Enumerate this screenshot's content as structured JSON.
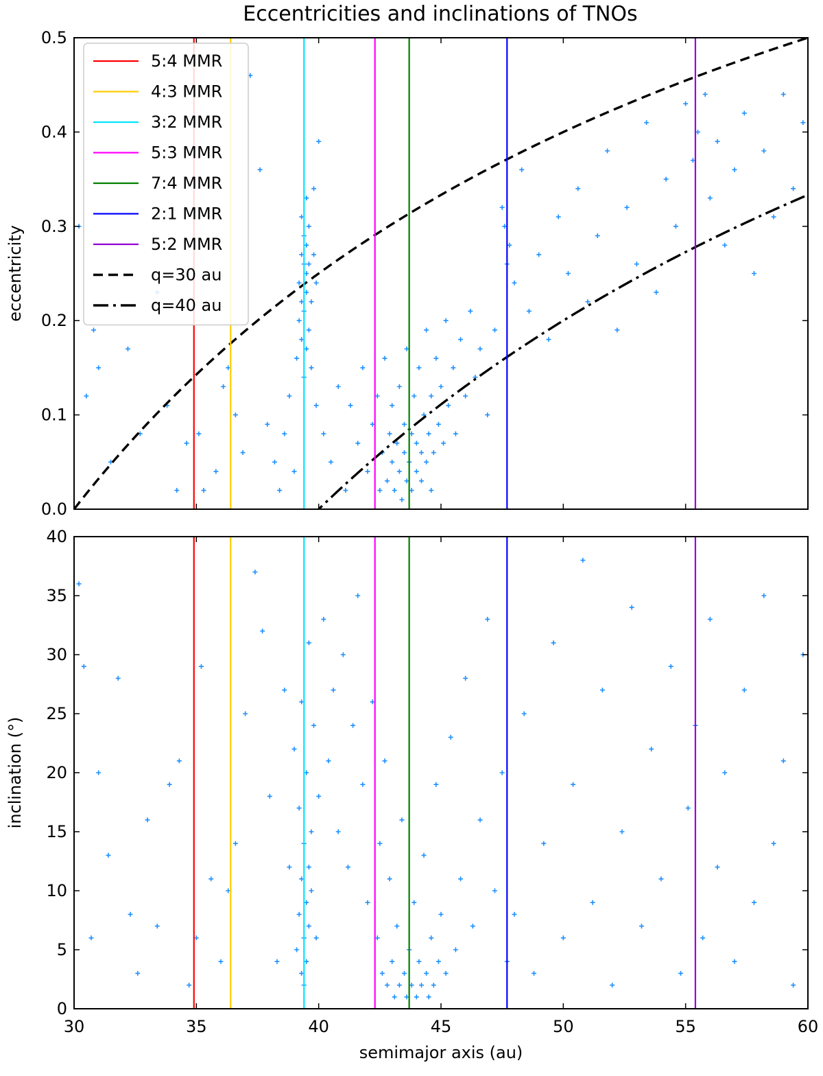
{
  "title": "Eccentricities and inclinations of TNOs",
  "chart_data": [
    {
      "type": "scatter",
      "panel": "top",
      "xlabel": "",
      "ylabel": "eccentricity",
      "xlim": [
        30,
        60
      ],
      "ylim": [
        0.0,
        0.5
      ],
      "xticks": [
        30,
        35,
        40,
        45,
        50,
        55,
        60
      ],
      "yticks": [
        0.0,
        0.1,
        0.2,
        0.3,
        0.4,
        0.5
      ],
      "ytick_labels": [
        "0.0",
        "0.1",
        "0.2",
        "0.3",
        "0.4",
        "0.5"
      ],
      "legend_position": "top-left",
      "reference_lines": [
        {
          "name": "5:4 MMR",
          "x": 34.9,
          "color": "#ff0000"
        },
        {
          "name": "4:3 MMR",
          "x": 36.4,
          "color": "#ffcc00"
        },
        {
          "name": "3:2 MMR",
          "x": 39.4,
          "color": "#00e5ff"
        },
        {
          "name": "5:3 MMR",
          "x": 42.3,
          "color": "#ff00ff"
        },
        {
          "name": "7:4 MMR",
          "x": 43.7,
          "color": "#007f00"
        },
        {
          "name": "2:1 MMR",
          "x": 47.7,
          "color": "#0000ff"
        },
        {
          "name": "5:2 MMR",
          "x": 55.4,
          "color": "#9400d3"
        }
      ],
      "curves": [
        {
          "name": "q=30 au",
          "q": 30,
          "formula": "e = 1 - q/a",
          "style": "dashed",
          "color": "#000000"
        },
        {
          "name": "q=40 au",
          "q": 40,
          "formula": "e = 1 - q/a",
          "style": "dashdot",
          "color": "#000000"
        }
      ],
      "scatter_color": "#1e90ff",
      "points": [
        [
          30.2,
          0.3
        ],
        [
          30.5,
          0.12
        ],
        [
          30.8,
          0.19
        ],
        [
          31.0,
          0.15
        ],
        [
          31.5,
          0.05
        ],
        [
          32.2,
          0.17
        ],
        [
          32.7,
          0.08
        ],
        [
          33.4,
          0.23
        ],
        [
          33.8,
          0.11
        ],
        [
          34.2,
          0.02
        ],
        [
          34.6,
          0.07
        ],
        [
          35.1,
          0.08
        ],
        [
          35.3,
          0.02
        ],
        [
          35.8,
          0.04
        ],
        [
          36.1,
          0.13
        ],
        [
          36.3,
          0.15
        ],
        [
          36.6,
          0.1
        ],
        [
          36.9,
          0.06
        ],
        [
          37.2,
          0.46
        ],
        [
          37.6,
          0.36
        ],
        [
          37.9,
          0.09
        ],
        [
          38.2,
          0.05
        ],
        [
          38.4,
          0.02
        ],
        [
          38.6,
          0.08
        ],
        [
          38.8,
          0.12
        ],
        [
          39.0,
          0.04
        ],
        [
          39.1,
          0.16
        ],
        [
          39.2,
          0.2
        ],
        [
          39.2,
          0.24
        ],
        [
          39.3,
          0.27
        ],
        [
          39.3,
          0.31
        ],
        [
          39.3,
          0.22
        ],
        [
          39.3,
          0.18
        ],
        [
          39.4,
          0.14
        ],
        [
          39.4,
          0.26
        ],
        [
          39.4,
          0.29
        ],
        [
          39.4,
          0.21
        ],
        [
          39.5,
          0.33
        ],
        [
          39.5,
          0.25
        ],
        [
          39.5,
          0.17
        ],
        [
          39.5,
          0.23
        ],
        [
          39.5,
          0.28
        ],
        [
          39.6,
          0.19
        ],
        [
          39.6,
          0.3
        ],
        [
          39.6,
          0.26
        ],
        [
          39.7,
          0.22
        ],
        [
          39.7,
          0.15
        ],
        [
          39.8,
          0.34
        ],
        [
          39.8,
          0.27
        ],
        [
          39.9,
          0.24
        ],
        [
          39.9,
          0.11
        ],
        [
          40.0,
          0.39
        ],
        [
          40.2,
          0.08
        ],
        [
          40.5,
          0.05
        ],
        [
          40.8,
          0.13
        ],
        [
          41.1,
          0.02
        ],
        [
          41.3,
          0.11
        ],
        [
          41.6,
          0.07
        ],
        [
          41.8,
          0.15
        ],
        [
          42.0,
          0.04
        ],
        [
          42.2,
          0.09
        ],
        [
          42.4,
          0.12
        ],
        [
          42.5,
          0.02
        ],
        [
          42.6,
          0.06
        ],
        [
          42.7,
          0.16
        ],
        [
          42.8,
          0.03
        ],
        [
          42.9,
          0.08
        ],
        [
          43.0,
          0.05
        ],
        [
          43.0,
          0.11
        ],
        [
          43.1,
          0.02
        ],
        [
          43.2,
          0.07
        ],
        [
          43.3,
          0.04
        ],
        [
          43.3,
          0.13
        ],
        [
          43.4,
          0.01
        ],
        [
          43.5,
          0.06
        ],
        [
          43.5,
          0.09
        ],
        [
          43.6,
          0.03
        ],
        [
          43.6,
          0.17
        ],
        [
          43.7,
          0.05
        ],
        [
          43.8,
          0.02
        ],
        [
          43.8,
          0.08
        ],
        [
          43.9,
          0.12
        ],
        [
          44.0,
          0.04
        ],
        [
          44.0,
          0.07
        ],
        [
          44.1,
          0.15
        ],
        [
          44.2,
          0.03
        ],
        [
          44.2,
          0.06
        ],
        [
          44.3,
          0.1
        ],
        [
          44.4,
          0.05
        ],
        [
          44.4,
          0.19
        ],
        [
          44.5,
          0.08
        ],
        [
          44.6,
          0.02
        ],
        [
          44.6,
          0.12
        ],
        [
          44.7,
          0.06
        ],
        [
          44.8,
          0.16
        ],
        [
          44.9,
          0.09
        ],
        [
          45.0,
          0.13
        ],
        [
          45.1,
          0.07
        ],
        [
          45.2,
          0.2
        ],
        [
          45.3,
          0.11
        ],
        [
          45.5,
          0.15
        ],
        [
          45.6,
          0.08
        ],
        [
          45.8,
          0.18
        ],
        [
          46.0,
          0.12
        ],
        [
          46.2,
          0.21
        ],
        [
          46.4,
          0.14
        ],
        [
          46.6,
          0.17
        ],
        [
          46.9,
          0.1
        ],
        [
          47.2,
          0.19
        ],
        [
          47.5,
          0.32
        ],
        [
          47.6,
          0.3
        ],
        [
          47.7,
          0.26
        ],
        [
          47.8,
          0.28
        ],
        [
          48.0,
          0.24
        ],
        [
          48.3,
          0.36
        ],
        [
          48.6,
          0.21
        ],
        [
          49.0,
          0.27
        ],
        [
          49.4,
          0.18
        ],
        [
          49.8,
          0.31
        ],
        [
          50.2,
          0.25
        ],
        [
          50.6,
          0.34
        ],
        [
          51.0,
          0.22
        ],
        [
          51.4,
          0.29
        ],
        [
          51.8,
          0.38
        ],
        [
          52.2,
          0.19
        ],
        [
          52.6,
          0.32
        ],
        [
          53.0,
          0.26
        ],
        [
          53.4,
          0.41
        ],
        [
          53.8,
          0.23
        ],
        [
          54.2,
          0.35
        ],
        [
          54.6,
          0.3
        ],
        [
          55.0,
          0.43
        ],
        [
          55.3,
          0.37
        ],
        [
          55.5,
          0.4
        ],
        [
          55.8,
          0.44
        ],
        [
          56.0,
          0.33
        ],
        [
          56.3,
          0.39
        ],
        [
          56.6,
          0.28
        ],
        [
          57.0,
          0.36
        ],
        [
          57.4,
          0.42
        ],
        [
          57.8,
          0.25
        ],
        [
          58.2,
          0.38
        ],
        [
          58.6,
          0.31
        ],
        [
          59.0,
          0.44
        ],
        [
          59.4,
          0.34
        ],
        [
          59.8,
          0.41
        ]
      ]
    },
    {
      "type": "scatter",
      "panel": "bottom",
      "xlabel": "semimajor axis (au)",
      "ylabel": "inclination (°)",
      "xlim": [
        30,
        60
      ],
      "ylim": [
        0,
        40
      ],
      "xticks": [
        30,
        35,
        40,
        45,
        50,
        55,
        60
      ],
      "yticks": [
        0,
        5,
        10,
        15,
        20,
        25,
        30,
        35,
        40
      ],
      "ytick_labels": [
        "0",
        "5",
        "10",
        "15",
        "20",
        "25",
        "30",
        "35",
        "40"
      ],
      "reference_lines": [
        {
          "name": "5:4 MMR",
          "x": 34.9,
          "color": "#ff0000"
        },
        {
          "name": "4:3 MMR",
          "x": 36.4,
          "color": "#ffcc00"
        },
        {
          "name": "3:2 MMR",
          "x": 39.4,
          "color": "#00e5ff"
        },
        {
          "name": "5:3 MMR",
          "x": 42.3,
          "color": "#ff00ff"
        },
        {
          "name": "7:4 MMR",
          "x": 43.7,
          "color": "#007f00"
        },
        {
          "name": "2:1 MMR",
          "x": 47.7,
          "color": "#0000ff"
        },
        {
          "name": "5:2 MMR",
          "x": 55.4,
          "color": "#9400d3"
        }
      ],
      "scatter_color": "#1e90ff",
      "points": [
        [
          30.2,
          36
        ],
        [
          30.4,
          29
        ],
        [
          30.7,
          6
        ],
        [
          31.0,
          20
        ],
        [
          31.4,
          13
        ],
        [
          31.8,
          28
        ],
        [
          32.3,
          8
        ],
        [
          32.6,
          3
        ],
        [
          33.0,
          16
        ],
        [
          33.4,
          7
        ],
        [
          33.9,
          19
        ],
        [
          34.3,
          21
        ],
        [
          34.7,
          2
        ],
        [
          35.0,
          6
        ],
        [
          35.2,
          29
        ],
        [
          35.6,
          11
        ],
        [
          36.0,
          4
        ],
        [
          36.3,
          10
        ],
        [
          36.6,
          14
        ],
        [
          37.0,
          25
        ],
        [
          37.4,
          37
        ],
        [
          37.7,
          32
        ],
        [
          38.0,
          18
        ],
        [
          38.3,
          4
        ],
        [
          38.6,
          27
        ],
        [
          38.8,
          12
        ],
        [
          39.0,
          22
        ],
        [
          39.1,
          5
        ],
        [
          39.2,
          8
        ],
        [
          39.2,
          17
        ],
        [
          39.3,
          3
        ],
        [
          39.3,
          11
        ],
        [
          39.3,
          26
        ],
        [
          39.4,
          6
        ],
        [
          39.4,
          14
        ],
        [
          39.4,
          2
        ],
        [
          39.5,
          9
        ],
        [
          39.5,
          20
        ],
        [
          39.5,
          4
        ],
        [
          39.6,
          12
        ],
        [
          39.6,
          7
        ],
        [
          39.6,
          31
        ],
        [
          39.7,
          10
        ],
        [
          39.7,
          15
        ],
        [
          39.8,
          24
        ],
        [
          39.9,
          6
        ],
        [
          40.0,
          18
        ],
        [
          40.2,
          33
        ],
        [
          40.4,
          21
        ],
        [
          40.6,
          27
        ],
        [
          40.8,
          15
        ],
        [
          41.0,
          30
        ],
        [
          41.2,
          12
        ],
        [
          41.4,
          24
        ],
        [
          41.6,
          35
        ],
        [
          41.8,
          19
        ],
        [
          42.0,
          9
        ],
        [
          42.2,
          26
        ],
        [
          42.4,
          6
        ],
        [
          42.5,
          14
        ],
        [
          42.6,
          3
        ],
        [
          42.7,
          21
        ],
        [
          42.8,
          2
        ],
        [
          42.9,
          11
        ],
        [
          43.0,
          4
        ],
        [
          43.1,
          1
        ],
        [
          43.2,
          7
        ],
        [
          43.3,
          2
        ],
        [
          43.4,
          16
        ],
        [
          43.5,
          3
        ],
        [
          43.6,
          1
        ],
        [
          43.7,
          5
        ],
        [
          43.8,
          2
        ],
        [
          43.9,
          9
        ],
        [
          44.0,
          1
        ],
        [
          44.1,
          4
        ],
        [
          44.2,
          2
        ],
        [
          44.3,
          13
        ],
        [
          44.4,
          3
        ],
        [
          44.5,
          1
        ],
        [
          44.6,
          6
        ],
        [
          44.7,
          2
        ],
        [
          44.8,
          19
        ],
        [
          44.9,
          4
        ],
        [
          45.0,
          8
        ],
        [
          45.2,
          3
        ],
        [
          45.4,
          23
        ],
        [
          45.6,
          5
        ],
        [
          45.8,
          11
        ],
        [
          46.0,
          28
        ],
        [
          46.3,
          7
        ],
        [
          46.6,
          16
        ],
        [
          46.9,
          33
        ],
        [
          47.2,
          10
        ],
        [
          47.5,
          20
        ],
        [
          47.7,
          4
        ],
        [
          48.0,
          8
        ],
        [
          48.4,
          25
        ],
        [
          48.8,
          3
        ],
        [
          49.2,
          14
        ],
        [
          49.6,
          31
        ],
        [
          50.0,
          6
        ],
        [
          50.4,
          19
        ],
        [
          50.8,
          38
        ],
        [
          51.2,
          9
        ],
        [
          51.6,
          27
        ],
        [
          52.0,
          2
        ],
        [
          52.4,
          15
        ],
        [
          52.8,
          34
        ],
        [
          53.2,
          7
        ],
        [
          53.6,
          22
        ],
        [
          54.0,
          11
        ],
        [
          54.4,
          29
        ],
        [
          54.8,
          3
        ],
        [
          55.1,
          17
        ],
        [
          55.4,
          24
        ],
        [
          55.7,
          6
        ],
        [
          56.0,
          33
        ],
        [
          56.3,
          12
        ],
        [
          56.6,
          20
        ],
        [
          57.0,
          4
        ],
        [
          57.4,
          27
        ],
        [
          57.8,
          9
        ],
        [
          58.2,
          35
        ],
        [
          58.6,
          14
        ],
        [
          59.0,
          21
        ],
        [
          59.4,
          2
        ],
        [
          59.8,
          30
        ]
      ]
    }
  ]
}
